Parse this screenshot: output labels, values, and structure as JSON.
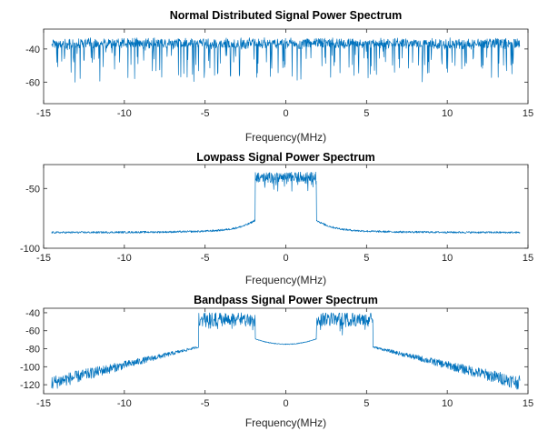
{
  "colors": {
    "series": "#0072BD",
    "axis": "#262626",
    "background": "#ffffff"
  },
  "chart_data": [
    {
      "type": "line",
      "title": "Normal Distributed Signal Power Spectrum",
      "xlabel": "Frequency(MHz)",
      "ylabel": "",
      "xlim": [
        -15,
        15
      ],
      "ylim": [
        -73,
        -28
      ],
      "xticks": [
        -15,
        -10,
        -5,
        0,
        5,
        10,
        15
      ],
      "yticks": [
        -40,
        -60
      ],
      "grid": false,
      "legend": "none",
      "series": [
        {
          "x_range": [
            -14.5,
            14.5
          ],
          "profile": "flat",
          "level_db": -35,
          "noise_db": 4,
          "dips": true
        }
      ]
    },
    {
      "type": "line",
      "title": "Lowpass Signal Power Spectrum",
      "xlabel": "Frequency(MHz)",
      "ylabel": "",
      "xlim": [
        -15,
        15
      ],
      "ylim": [
        -100,
        -30
      ],
      "xticks": [
        -15,
        -10,
        -5,
        0,
        5,
        10,
        15
      ],
      "yticks": [
        -50,
        -100
      ],
      "grid": false,
      "legend": "none",
      "series": [
        {
          "x_range": [
            -14.5,
            14.5
          ],
          "profile": "lowpass",
          "passband": [
            -1.9,
            1.9
          ],
          "passband_db": -36,
          "floor_db": -87,
          "skirt_db": -78
        }
      ]
    },
    {
      "type": "line",
      "title": "Bandpass Signal Power Spectrum",
      "xlabel": "Frequency(MHz)",
      "ylabel": "",
      "xlim": [
        -15,
        15
      ],
      "ylim": [
        -130,
        -35
      ],
      "xticks": [
        -15,
        -10,
        -5,
        0,
        5,
        10,
        15
      ],
      "yticks": [
        -40,
        -60,
        -80,
        -100,
        -120
      ],
      "grid": false,
      "legend": "none",
      "series": [
        {
          "x_range": [
            -14.5,
            14.5
          ],
          "profile": "bandpass",
          "passbands": [
            [
              -5.4,
              -1.9
            ],
            [
              1.9,
              5.4
            ]
          ],
          "passband_db": -45,
          "center_db": -73,
          "edge_db": -118
        }
      ]
    }
  ]
}
